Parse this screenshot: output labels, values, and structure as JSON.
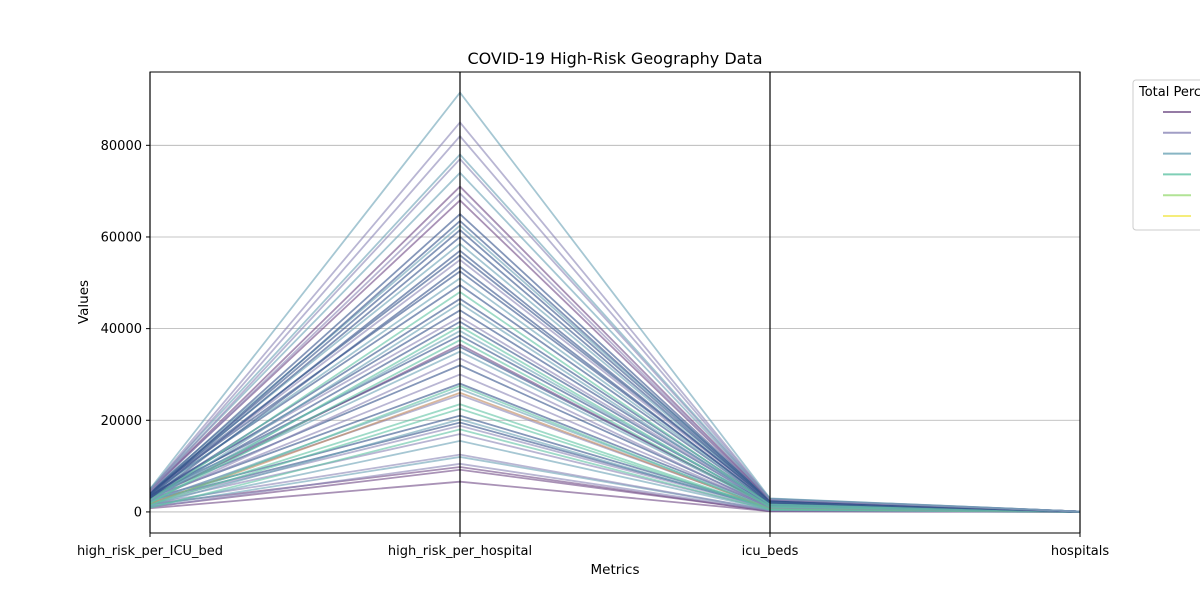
{
  "chart_data": {
    "type": "parallel_coordinates",
    "title": "COVID-19 High-Risk Geography Data",
    "xlabel": "Metrics",
    "ylabel": "Values",
    "ylim": [
      -4600,
      96000
    ],
    "yticks": [
      0,
      20000,
      40000,
      60000,
      80000
    ],
    "yticklabels": [
      "0",
      "20000",
      "40000",
      "60000",
      "80000"
    ],
    "dimensions": [
      "high_risk_per_ICU_bed",
      "high_risk_per_hospital",
      "icu_beds",
      "hospitals"
    ],
    "grid": true,
    "legend": {
      "title": "Total Perc",
      "placement": "outside-top-right",
      "colors": [
        "#7b5a8f",
        "#8a86b6",
        "#6aa2b5",
        "#5fc3a4",
        "#9ddc7a",
        "#f2e85a"
      ]
    },
    "series": [
      {
        "color": "#6f4a86",
        "values": [
          800,
          6600,
          150,
          10
        ]
      },
      {
        "color": "#6f4a86",
        "values": [
          1100,
          9200,
          220,
          12
        ]
      },
      {
        "color": "#6f4a86",
        "values": [
          1700,
          9800,
          160,
          14
        ]
      },
      {
        "color": "#8a86b6",
        "values": [
          1000,
          10500,
          300,
          15
        ]
      },
      {
        "color": "#6aa2b5",
        "values": [
          1300,
          12000,
          400,
          18
        ]
      },
      {
        "color": "#8a86b6",
        "values": [
          1900,
          12500,
          350,
          20
        ]
      },
      {
        "color": "#6aa2b5",
        "values": [
          1200,
          15500,
          500,
          22
        ]
      },
      {
        "color": "#8a86b6",
        "values": [
          2000,
          17000,
          600,
          25
        ]
      },
      {
        "color": "#5fc3a4",
        "values": [
          900,
          18000,
          450,
          20
        ]
      },
      {
        "color": "#8a86b6",
        "values": [
          2300,
          18800,
          800,
          30
        ]
      },
      {
        "color": "#34528a",
        "values": [
          2600,
          19500,
          900,
          30
        ]
      },
      {
        "color": "#6aa2b5",
        "values": [
          1400,
          20200,
          700,
          28
        ]
      },
      {
        "color": "#34528a",
        "values": [
          3000,
          21000,
          1000,
          35
        ]
      },
      {
        "color": "#5fc3a4",
        "values": [
          1600,
          22500,
          650,
          26
        ]
      },
      {
        "color": "#5fc3a4",
        "values": [
          2100,
          23500,
          720,
          32
        ]
      },
      {
        "color": "#8a86b6",
        "values": [
          2500,
          25500,
          900,
          40
        ]
      },
      {
        "color": "#c0875a",
        "values": [
          1800,
          26000,
          800,
          35
        ]
      },
      {
        "color": "#6aa2b5",
        "values": [
          2200,
          26800,
          950,
          38
        ]
      },
      {
        "color": "#5fc3a4",
        "values": [
          1500,
          27500,
          700,
          30
        ]
      },
      {
        "color": "#34528a",
        "values": [
          3200,
          28000,
          1200,
          45
        ]
      },
      {
        "color": "#8a86b6",
        "values": [
          2800,
          30000,
          1100,
          42
        ]
      },
      {
        "color": "#34528a",
        "values": [
          3500,
          32000,
          1300,
          50
        ]
      },
      {
        "color": "#8a86b6",
        "values": [
          2400,
          33500,
          1000,
          40
        ]
      },
      {
        "color": "#6aa2b5",
        "values": [
          3300,
          35000,
          1400,
          55
        ]
      },
      {
        "color": "#34528a",
        "values": [
          3700,
          36000,
          1500,
          58
        ]
      },
      {
        "color": "#6f4a86",
        "values": [
          2900,
          36500,
          1350,
          52
        ]
      },
      {
        "color": "#5fc3a4",
        "values": [
          2000,
          37500,
          1100,
          45
        ]
      },
      {
        "color": "#34528a",
        "values": [
          3900,
          38500,
          1600,
          60
        ]
      },
      {
        "color": "#6aa2b5",
        "values": [
          2700,
          39500,
          1450,
          55
        ]
      },
      {
        "color": "#5fc3a4",
        "values": [
          1900,
          40500,
          1200,
          48
        ]
      },
      {
        "color": "#34528a",
        "values": [
          3100,
          41500,
          1700,
          62
        ]
      },
      {
        "color": "#8a86b6",
        "values": [
          4100,
          42500,
          1800,
          65
        ]
      },
      {
        "color": "#34528a",
        "values": [
          3600,
          44000,
          1900,
          68
        ]
      },
      {
        "color": "#6aa2b5",
        "values": [
          2300,
          45500,
          1550,
          60
        ]
      },
      {
        "color": "#34528a",
        "values": [
          3400,
          46500,
          2000,
          70
        ]
      },
      {
        "color": "#5fc3a4",
        "values": [
          2600,
          48000,
          1650,
          64
        ]
      },
      {
        "color": "#34528a",
        "values": [
          4200,
          49500,
          2100,
          72
        ]
      },
      {
        "color": "#6aa2b5",
        "values": [
          3800,
          51000,
          2200,
          75
        ]
      },
      {
        "color": "#34528a",
        "values": [
          4400,
          52500,
          2300,
          78
        ]
      },
      {
        "color": "#34528a",
        "values": [
          3000,
          53500,
          2050,
          74
        ]
      },
      {
        "color": "#8a86b6",
        "values": [
          4000,
          55000,
          2400,
          80
        ]
      },
      {
        "color": "#34528a",
        "values": [
          4300,
          56000,
          2500,
          82
        ]
      },
      {
        "color": "#34528a",
        "values": [
          3500,
          57000,
          2350,
          78
        ]
      },
      {
        "color": "#6aa2b5",
        "values": [
          4500,
          58500,
          2600,
          85
        ]
      },
      {
        "color": "#34528a",
        "values": [
          3900,
          60000,
          2450,
          80
        ]
      },
      {
        "color": "#34528a",
        "values": [
          4100,
          61500,
          2550,
          84
        ]
      },
      {
        "color": "#6aa2b5",
        "values": [
          4600,
          62500,
          2700,
          88
        ]
      },
      {
        "color": "#34528a",
        "values": [
          3700,
          63500,
          2500,
          82
        ]
      },
      {
        "color": "#34528a",
        "values": [
          4200,
          65000,
          2650,
          86
        ]
      },
      {
        "color": "#6f4a86",
        "values": [
          4800,
          68000,
          2750,
          90
        ]
      },
      {
        "color": "#8a86b6",
        "values": [
          4500,
          69500,
          2700,
          88
        ]
      },
      {
        "color": "#6f4a86",
        "values": [
          4700,
          71000,
          2800,
          92
        ]
      },
      {
        "color": "#6aa2b5",
        "values": [
          4900,
          74000,
          2850,
          94
        ]
      },
      {
        "color": "#8a86b6",
        "values": [
          4400,
          77000,
          2750,
          90
        ]
      },
      {
        "color": "#6aa2b5",
        "values": [
          5000,
          78000,
          2900,
          95
        ]
      },
      {
        "color": "#8a86b6",
        "values": [
          4600,
          82000,
          2800,
          92
        ]
      },
      {
        "color": "#8a86b6",
        "values": [
          4800,
          85000,
          2850,
          94
        ]
      },
      {
        "color": "#6aa2b5",
        "values": [
          5000,
          91500,
          2950,
          96
        ]
      }
    ]
  }
}
